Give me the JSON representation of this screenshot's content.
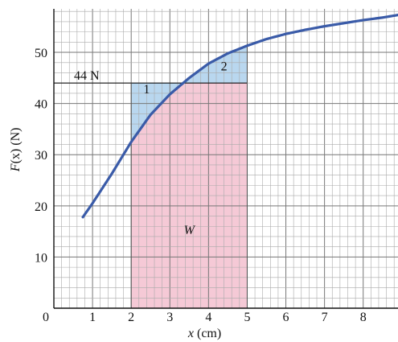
{
  "chart_data": {
    "type": "line",
    "xlabel": "x (cm)",
    "ylabel": "F(x) (N)",
    "xlim": [
      0,
      8.9
    ],
    "ylim": [
      0,
      58.5
    ],
    "x_ticks": [
      0,
      1,
      2,
      3,
      4,
      5,
      6,
      7,
      8
    ],
    "y_ticks": [
      10,
      20,
      30,
      40,
      50
    ],
    "minor_step_x": 0.2,
    "minor_step_y": 2,
    "grid": true,
    "series": [
      {
        "color": "#3a5ba8",
        "x": [
          0.75,
          1.0,
          1.5,
          2.0,
          2.5,
          3.0,
          3.5,
          4.0,
          4.5,
          5.0,
          5.5,
          6.0,
          6.5,
          7.0,
          7.5,
          8.0,
          8.5,
          8.9
        ],
        "y": [
          17.8,
          20.5,
          26.3,
          32.5,
          37.8,
          41.8,
          45.0,
          47.8,
          49.8,
          51.3,
          52.6,
          53.6,
          54.4,
          55.1,
          55.7,
          56.3,
          56.8,
          57.3
        ]
      }
    ],
    "reference_line": {
      "y": 44,
      "x_from": 0,
      "x_to": 5,
      "label": "44 N"
    },
    "shaded_regions": [
      {
        "label": "W",
        "x_from": 2,
        "x_to": 5,
        "y_from": 0,
        "y_top": "min(curve,44)",
        "color": "#f5c9d6"
      },
      {
        "label": "1",
        "x_from": 2,
        "x_to": 3.35,
        "between": "curve and 44",
        "color": "#b9d7ef"
      },
      {
        "label": "2",
        "x_from": 3.35,
        "x_to": 5,
        "between": "44 and curve",
        "color": "#b9d7ef"
      }
    ],
    "annotations": [
      {
        "text": "1",
        "x": 2.4,
        "y": 42
      },
      {
        "text": "2",
        "x": 4.4,
        "y": 46.5
      },
      {
        "text": "W",
        "x": 3.5,
        "y": 14.5,
        "italic": true
      }
    ]
  },
  "labels": {
    "ylabel_prefix": "F",
    "ylabel_mid": "(x)",
    "ylabel_suffix": " (N)",
    "xlabel_var": "x",
    "xlabel_unit": " (cm)",
    "ref_line_label": "44 N",
    "region_1": "1",
    "region_2": "2",
    "region_w": "W"
  }
}
